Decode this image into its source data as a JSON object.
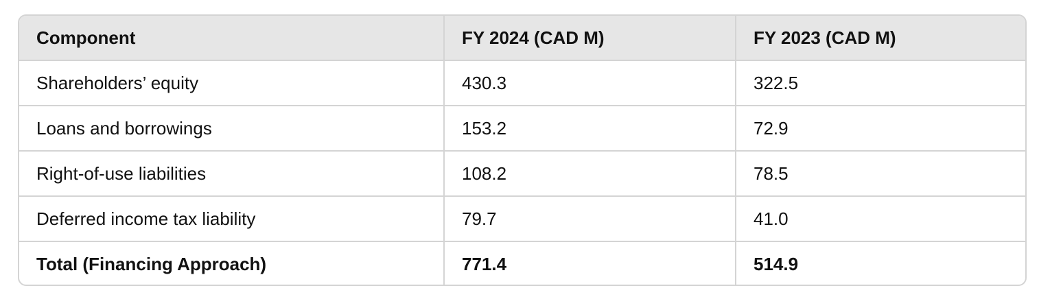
{
  "table": {
    "headers": [
      "Component",
      "FY 2024 (CAD M)",
      "FY 2023 (CAD M)"
    ],
    "rows": [
      [
        "Shareholders’ equity",
        "430.3",
        "322.5"
      ],
      [
        "Loans and borrowings",
        "153.2",
        "72.9"
      ],
      [
        "Right-of-use liabilities",
        "108.2",
        "78.5"
      ],
      [
        "Deferred income tax liability",
        "79.7",
        "41.0"
      ]
    ],
    "total_row": [
      "Total (Financing Approach)",
      "771.4",
      "514.9"
    ]
  },
  "colors": {
    "header_bg": "#e6e6e6",
    "border": "#d4d4d4",
    "text": "#111111"
  }
}
